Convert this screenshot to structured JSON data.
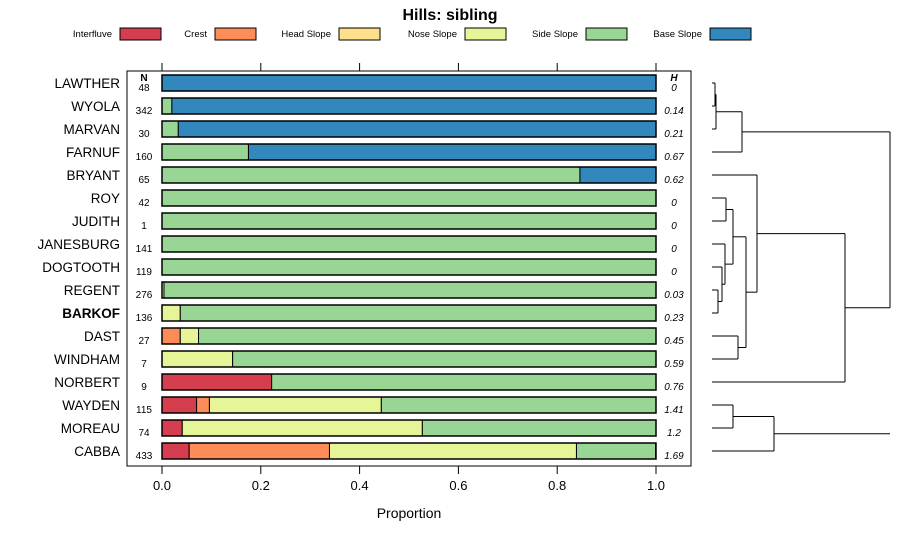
{
  "chart_data": {
    "type": "bar",
    "stacked": true,
    "orientation": "horizontal",
    "title": "Hills: sibling",
    "xlabel": "Proportion",
    "ylabel": "",
    "xlim": [
      0,
      1
    ],
    "x_ticks": [
      "0.0",
      "0.2",
      "0.4",
      "0.6",
      "0.8",
      "1.0"
    ],
    "n_header": "N",
    "h_header": "H",
    "highlight": "BARKOF",
    "legend_position": "top",
    "series": [
      {
        "name": "Interfluve",
        "color": "#d53e4f"
      },
      {
        "name": "Crest",
        "color": "#fc8d59"
      },
      {
        "name": "Head Slope",
        "color": "#fee08b"
      },
      {
        "name": "Nose Slope",
        "color": "#e6f598"
      },
      {
        "name": "Side Slope",
        "color": "#99d594"
      },
      {
        "name": "Base Slope",
        "color": "#3288bd"
      }
    ],
    "rows": [
      {
        "name": "LAWTHER",
        "n": "48",
        "h": "0",
        "values": [
          0,
          0,
          0,
          0,
          0,
          1.0
        ]
      },
      {
        "name": "WYOLA",
        "n": "342",
        "h": "0.14",
        "values": [
          0,
          0,
          0,
          0,
          0.02,
          0.98
        ]
      },
      {
        "name": "MARVAN",
        "n": "30",
        "h": "0.21",
        "values": [
          0,
          0,
          0,
          0,
          0.033,
          0.967
        ]
      },
      {
        "name": "FARNUF",
        "n": "160",
        "h": "0.67",
        "values": [
          0,
          0,
          0,
          0,
          0.175,
          0.825
        ]
      },
      {
        "name": "BRYANT",
        "n": "65",
        "h": "0.62",
        "values": [
          0,
          0,
          0,
          0,
          0.846,
          0.154
        ]
      },
      {
        "name": "ROY",
        "n": "42",
        "h": "0",
        "values": [
          0,
          0,
          0,
          0,
          1.0,
          0
        ]
      },
      {
        "name": "JUDITH",
        "n": "1",
        "h": "0",
        "values": [
          0,
          0,
          0,
          0,
          1.0,
          0
        ]
      },
      {
        "name": "JANESBURG",
        "n": "141",
        "h": "0",
        "values": [
          0,
          0,
          0,
          0,
          1.0,
          0
        ]
      },
      {
        "name": "DOGTOOTH",
        "n": "119",
        "h": "0",
        "values": [
          0,
          0,
          0,
          0,
          1.0,
          0
        ]
      },
      {
        "name": "REGENT",
        "n": "276",
        "h": "0.03",
        "values": [
          0,
          0,
          0,
          0.004,
          0.996,
          0
        ]
      },
      {
        "name": "BARKOF",
        "n": "136",
        "h": "0.23",
        "values": [
          0,
          0,
          0,
          0.037,
          0.963,
          0
        ]
      },
      {
        "name": "DAST",
        "n": "27",
        "h": "0.45",
        "values": [
          0,
          0.037,
          0,
          0.037,
          0.926,
          0
        ]
      },
      {
        "name": "WINDHAM",
        "n": "7",
        "h": "0.59",
        "values": [
          0,
          0,
          0,
          0.143,
          0.857,
          0
        ]
      },
      {
        "name": "NORBERT",
        "n": "9",
        "h": "0.76",
        "values": [
          0.222,
          0,
          0,
          0,
          0.778,
          0
        ]
      },
      {
        "name": "WAYDEN",
        "n": "115",
        "h": "1.41",
        "values": [
          0.07,
          0.026,
          0,
          0.348,
          0.556,
          0
        ]
      },
      {
        "name": "MOREAU",
        "n": "74",
        "h": "1.2",
        "values": [
          0.041,
          0,
          0,
          0.486,
          0.473,
          0
        ]
      },
      {
        "name": "CABBA",
        "n": "433",
        "h": "1.69",
        "values": [
          0.055,
          0.284,
          0,
          0.5,
          0.16,
          0.001
        ]
      }
    ]
  }
}
